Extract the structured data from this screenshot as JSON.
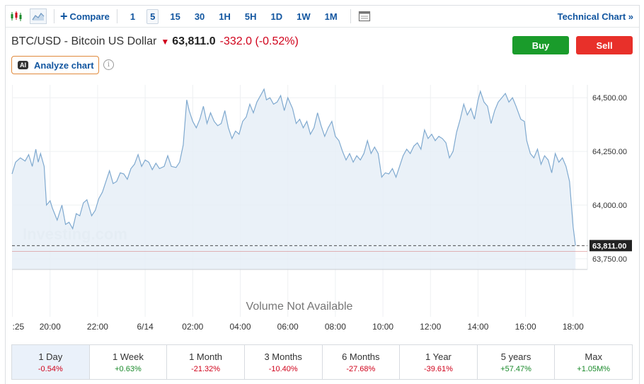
{
  "toolbar": {
    "compare_label": "Compare",
    "intervals": [
      "1",
      "5",
      "15",
      "30",
      "1H",
      "5H",
      "1D",
      "1W",
      "1M"
    ],
    "active_interval": "5",
    "tech_chart_label": "Technical Chart »"
  },
  "header": {
    "pair": "BTC/USD - Bitcoin US Dollar",
    "price": "63,811.0",
    "change": "-332.0",
    "change_pct": "(-0.52%)",
    "buy_label": "Buy",
    "sell_label": "Sell",
    "analyze_label": "Analyze chart",
    "ai_badge": "AI"
  },
  "colors": {
    "accent": "#1256a0",
    "down": "#d0021b",
    "up": "#1a8a2b",
    "buy": "#1a9c2b",
    "sell": "#e8302a",
    "line": "#7fa9cf",
    "area": "#e6eef7"
  },
  "chart_data": {
    "type": "area",
    "watermark": "Investing.com",
    "volume_text": "Volume Not Available",
    "current_label": "63,811.00",
    "current_value": 63811,
    "ylim": [
      63700,
      64560
    ],
    "yticks": [
      64500,
      64250,
      64000,
      63750
    ],
    "ytick_labels": [
      "64,500.00",
      "64,250.00",
      "64,000.00",
      "63,750.00"
    ],
    "xtick_labels": [
      ":25",
      "20:00",
      "22:00",
      "6/14",
      "02:00",
      "04:00",
      "06:00",
      "08:00",
      "10:00",
      "12:00",
      "14:00",
      "16:00",
      "18:00"
    ],
    "x_hours": [
      18.4167,
      20,
      22,
      24,
      26,
      28,
      30,
      32,
      34,
      36,
      38,
      40,
      42
    ],
    "x_range": [
      18.4,
      42.6
    ],
    "series": [
      {
        "x": 18.4,
        "y": 64145
      },
      {
        "x": 18.55,
        "y": 64200
      },
      {
        "x": 18.75,
        "y": 64220
      },
      {
        "x": 18.95,
        "y": 64205
      },
      {
        "x": 19.1,
        "y": 64235
      },
      {
        "x": 19.25,
        "y": 64180
      },
      {
        "x": 19.4,
        "y": 64260
      },
      {
        "x": 19.5,
        "y": 64200
      },
      {
        "x": 19.6,
        "y": 64240
      },
      {
        "x": 19.75,
        "y": 64180
      },
      {
        "x": 19.85,
        "y": 64000
      },
      {
        "x": 20.0,
        "y": 64020
      },
      {
        "x": 20.1,
        "y": 63985
      },
      {
        "x": 20.3,
        "y": 63930
      },
      {
        "x": 20.5,
        "y": 64000
      },
      {
        "x": 20.65,
        "y": 63910
      },
      {
        "x": 20.8,
        "y": 63920
      },
      {
        "x": 20.95,
        "y": 63890
      },
      {
        "x": 21.1,
        "y": 63960
      },
      {
        "x": 21.25,
        "y": 63950
      },
      {
        "x": 21.4,
        "y": 64010
      },
      {
        "x": 21.55,
        "y": 64025
      },
      {
        "x": 21.75,
        "y": 63950
      },
      {
        "x": 21.9,
        "y": 63975
      },
      {
        "x": 22.05,
        "y": 64030
      },
      {
        "x": 22.2,
        "y": 64060
      },
      {
        "x": 22.35,
        "y": 64110
      },
      {
        "x": 22.5,
        "y": 64160
      },
      {
        "x": 22.65,
        "y": 64100
      },
      {
        "x": 22.8,
        "y": 64110
      },
      {
        "x": 22.95,
        "y": 64150
      },
      {
        "x": 23.1,
        "y": 64145
      },
      {
        "x": 23.25,
        "y": 64120
      },
      {
        "x": 23.4,
        "y": 64170
      },
      {
        "x": 23.55,
        "y": 64190
      },
      {
        "x": 23.7,
        "y": 64235
      },
      {
        "x": 23.85,
        "y": 64180
      },
      {
        "x": 24.0,
        "y": 64210
      },
      {
        "x": 24.15,
        "y": 64200
      },
      {
        "x": 24.3,
        "y": 64165
      },
      {
        "x": 24.45,
        "y": 64195
      },
      {
        "x": 24.6,
        "y": 64170
      },
      {
        "x": 24.8,
        "y": 64180
      },
      {
        "x": 24.95,
        "y": 64230
      },
      {
        "x": 25.1,
        "y": 64180
      },
      {
        "x": 25.3,
        "y": 64175
      },
      {
        "x": 25.45,
        "y": 64200
      },
      {
        "x": 25.6,
        "y": 64280
      },
      {
        "x": 25.75,
        "y": 64490
      },
      {
        "x": 25.85,
        "y": 64440
      },
      {
        "x": 26.0,
        "y": 64390
      },
      {
        "x": 26.15,
        "y": 64360
      },
      {
        "x": 26.3,
        "y": 64400
      },
      {
        "x": 26.45,
        "y": 64460
      },
      {
        "x": 26.6,
        "y": 64380
      },
      {
        "x": 26.75,
        "y": 64430
      },
      {
        "x": 26.9,
        "y": 64390
      },
      {
        "x": 27.05,
        "y": 64370
      },
      {
        "x": 27.2,
        "y": 64380
      },
      {
        "x": 27.35,
        "y": 64440
      },
      {
        "x": 27.5,
        "y": 64360
      },
      {
        "x": 27.65,
        "y": 64310
      },
      {
        "x": 27.8,
        "y": 64345
      },
      {
        "x": 27.95,
        "y": 64330
      },
      {
        "x": 28.1,
        "y": 64390
      },
      {
        "x": 28.25,
        "y": 64410
      },
      {
        "x": 28.4,
        "y": 64470
      },
      {
        "x": 28.55,
        "y": 64430
      },
      {
        "x": 28.7,
        "y": 64480
      },
      {
        "x": 28.85,
        "y": 64510
      },
      {
        "x": 29.0,
        "y": 64540
      },
      {
        "x": 29.1,
        "y": 64490
      },
      {
        "x": 29.25,
        "y": 64500
      },
      {
        "x": 29.4,
        "y": 64470
      },
      {
        "x": 29.55,
        "y": 64480
      },
      {
        "x": 29.7,
        "y": 64510
      },
      {
        "x": 29.85,
        "y": 64440
      },
      {
        "x": 30.0,
        "y": 64500
      },
      {
        "x": 30.2,
        "y": 64450
      },
      {
        "x": 30.35,
        "y": 64380
      },
      {
        "x": 30.5,
        "y": 64400
      },
      {
        "x": 30.65,
        "y": 64360
      },
      {
        "x": 30.8,
        "y": 64390
      },
      {
        "x": 30.95,
        "y": 64330
      },
      {
        "x": 31.1,
        "y": 64360
      },
      {
        "x": 31.25,
        "y": 64430
      },
      {
        "x": 31.4,
        "y": 64370
      },
      {
        "x": 31.55,
        "y": 64320
      },
      {
        "x": 31.7,
        "y": 64360
      },
      {
        "x": 31.85,
        "y": 64390
      },
      {
        "x": 32.0,
        "y": 64320
      },
      {
        "x": 32.15,
        "y": 64300
      },
      {
        "x": 32.3,
        "y": 64250
      },
      {
        "x": 32.45,
        "y": 64210
      },
      {
        "x": 32.6,
        "y": 64240
      },
      {
        "x": 32.75,
        "y": 64200
      },
      {
        "x": 32.9,
        "y": 64230
      },
      {
        "x": 33.05,
        "y": 64210
      },
      {
        "x": 33.2,
        "y": 64240
      },
      {
        "x": 33.35,
        "y": 64300
      },
      {
        "x": 33.5,
        "y": 64240
      },
      {
        "x": 33.65,
        "y": 64270
      },
      {
        "x": 33.8,
        "y": 64240
      },
      {
        "x": 33.95,
        "y": 64130
      },
      {
        "x": 34.1,
        "y": 64150
      },
      {
        "x": 34.25,
        "y": 64145
      },
      {
        "x": 34.4,
        "y": 64170
      },
      {
        "x": 34.55,
        "y": 64130
      },
      {
        "x": 34.7,
        "y": 64180
      },
      {
        "x": 34.85,
        "y": 64230
      },
      {
        "x": 35.0,
        "y": 64260
      },
      {
        "x": 35.15,
        "y": 64240
      },
      {
        "x": 35.3,
        "y": 64275
      },
      {
        "x": 35.45,
        "y": 64290
      },
      {
        "x": 35.6,
        "y": 64260
      },
      {
        "x": 35.75,
        "y": 64350
      },
      {
        "x": 35.9,
        "y": 64310
      },
      {
        "x": 36.05,
        "y": 64330
      },
      {
        "x": 36.2,
        "y": 64300
      },
      {
        "x": 36.35,
        "y": 64320
      },
      {
        "x": 36.5,
        "y": 64310
      },
      {
        "x": 36.65,
        "y": 64290
      },
      {
        "x": 36.8,
        "y": 64220
      },
      {
        "x": 36.95,
        "y": 64250
      },
      {
        "x": 37.1,
        "y": 64340
      },
      {
        "x": 37.25,
        "y": 64400
      },
      {
        "x": 37.4,
        "y": 64470
      },
      {
        "x": 37.55,
        "y": 64420
      },
      {
        "x": 37.7,
        "y": 64450
      },
      {
        "x": 37.85,
        "y": 64400
      },
      {
        "x": 38.0,
        "y": 64490
      },
      {
        "x": 38.1,
        "y": 64530
      },
      {
        "x": 38.25,
        "y": 64480
      },
      {
        "x": 38.4,
        "y": 64460
      },
      {
        "x": 38.55,
        "y": 64380
      },
      {
        "x": 38.7,
        "y": 64440
      },
      {
        "x": 38.85,
        "y": 64480
      },
      {
        "x": 39.0,
        "y": 64500
      },
      {
        "x": 39.15,
        "y": 64520
      },
      {
        "x": 39.3,
        "y": 64480
      },
      {
        "x": 39.45,
        "y": 64500
      },
      {
        "x": 39.6,
        "y": 64460
      },
      {
        "x": 39.8,
        "y": 64400
      },
      {
        "x": 39.95,
        "y": 64390
      },
      {
        "x": 40.05,
        "y": 64300
      },
      {
        "x": 40.2,
        "y": 64240
      },
      {
        "x": 40.35,
        "y": 64220
      },
      {
        "x": 40.5,
        "y": 64260
      },
      {
        "x": 40.65,
        "y": 64190
      },
      {
        "x": 40.8,
        "y": 64230
      },
      {
        "x": 40.95,
        "y": 64210
      },
      {
        "x": 41.1,
        "y": 64150
      },
      {
        "x": 41.25,
        "y": 64240
      },
      {
        "x": 41.4,
        "y": 64200
      },
      {
        "x": 41.55,
        "y": 64220
      },
      {
        "x": 41.7,
        "y": 64180
      },
      {
        "x": 41.85,
        "y": 64110
      },
      {
        "x": 42.0,
        "y": 63900
      },
      {
        "x": 42.1,
        "y": 63811
      }
    ]
  },
  "periods": [
    {
      "label": "1 Day",
      "change": "-0.54%",
      "dir": "neg",
      "active": true
    },
    {
      "label": "1 Week",
      "change": "+0.63%",
      "dir": "pos",
      "active": false
    },
    {
      "label": "1 Month",
      "change": "-21.32%",
      "dir": "neg",
      "active": false
    },
    {
      "label": "3 Months",
      "change": "-10.40%",
      "dir": "neg",
      "active": false
    },
    {
      "label": "6 Months",
      "change": "-27.68%",
      "dir": "neg",
      "active": false
    },
    {
      "label": "1 Year",
      "change": "-39.61%",
      "dir": "neg",
      "active": false
    },
    {
      "label": "5 years",
      "change": "+57.47%",
      "dir": "pos",
      "active": false
    },
    {
      "label": "Max",
      "change": "+1.05M%",
      "dir": "pos",
      "active": false
    }
  ]
}
